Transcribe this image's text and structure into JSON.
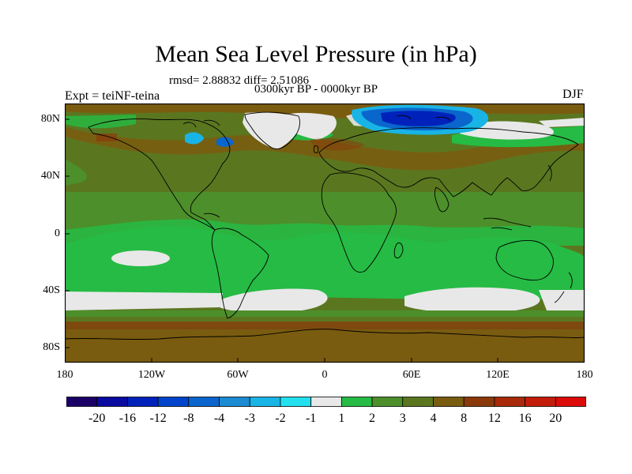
{
  "title": "Mean Sea Level Pressure (in hPa)",
  "stats": "rmsd= 2.88832 diff= 2.51086",
  "period": "0300kyr BP - 0000kyr BP",
  "experiment": "Expt = teiNF-teina",
  "season": "DJF",
  "lat_ticks": [
    "80N",
    "40N",
    "0",
    "40S",
    "80S"
  ],
  "lon_ticks": [
    "180",
    "120W",
    "60W",
    "0",
    "60E",
    "120E",
    "180"
  ],
  "colorbar": {
    "labels": [
      "-20",
      "-16",
      "-12",
      "-8",
      "-4",
      "-3",
      "-2",
      "-1",
      "1",
      "2",
      "3",
      "4",
      "8",
      "12",
      "16",
      "20"
    ],
    "colors": [
      "#1a0066",
      "#0a0aa0",
      "#0022bb",
      "#0044cc",
      "#0a66cc",
      "#1a8ad2",
      "#18b4e6",
      "#22e0ee",
      "#e8e8e8",
      "#26bb44",
      "#4d8f2a",
      "#5a7720",
      "#7a5c10",
      "#8a3a0a",
      "#a82a0a",
      "#c41c0a",
      "#dd0a0a"
    ]
  },
  "legend_colors": {
    "white": "#e8e8e8",
    "green": "#26bb44",
    "darkgreen": "#4d8f2a",
    "olive": "#5a7720",
    "brown": "#7a5c10",
    "blue": "#0044cc",
    "lightblue": "#18b4e6"
  }
}
